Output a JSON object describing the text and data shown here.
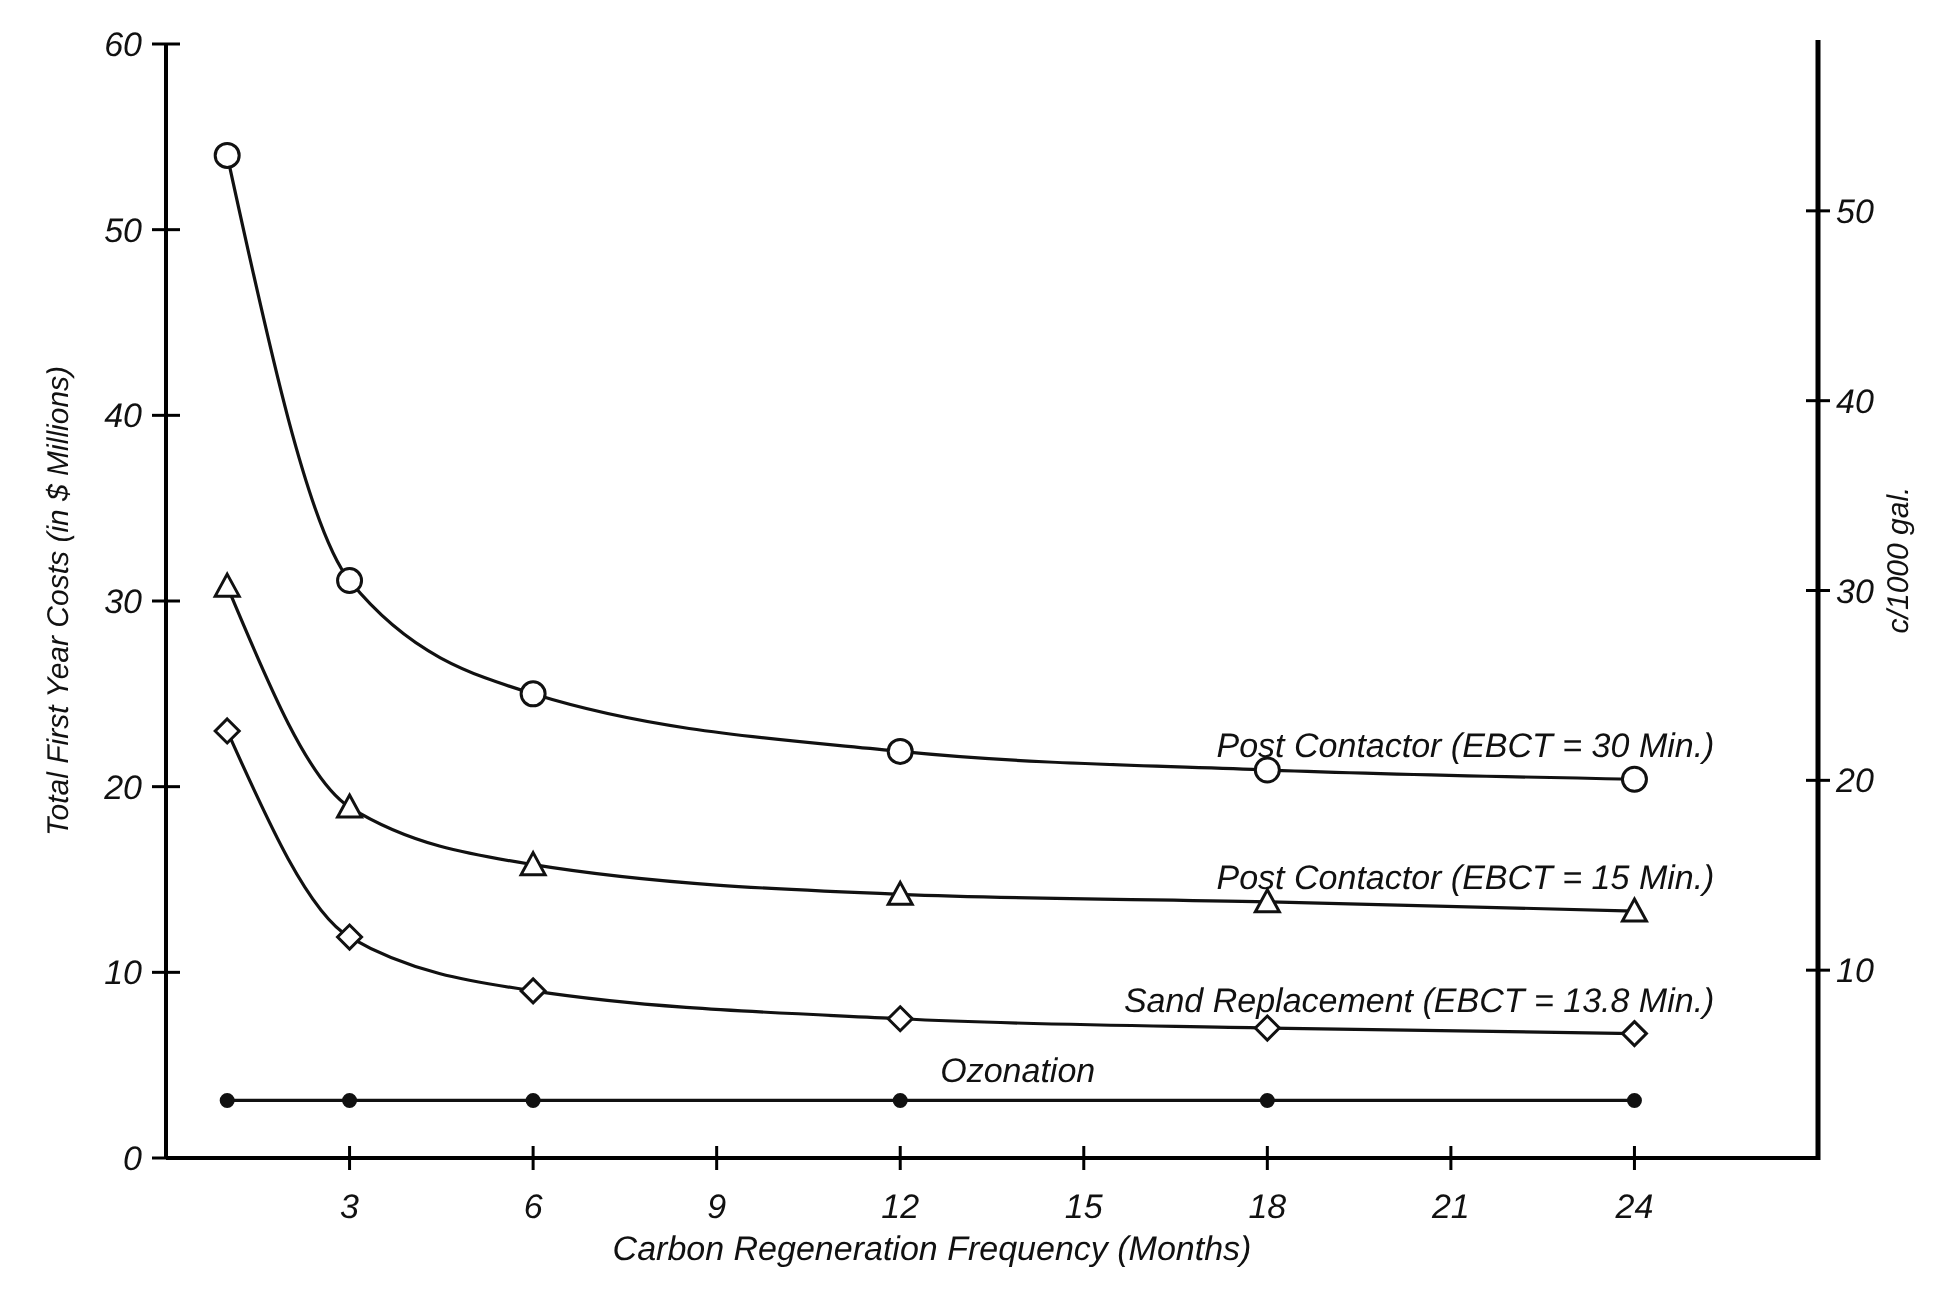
{
  "chart_data": {
    "type": "line",
    "xlabel": "Carbon Regeneration Frequency (Months)",
    "ylabel": "Total First Year Costs (in $ Millions)",
    "y2label": "c/1000 gal.",
    "xlim": [
      0,
      27
    ],
    "xticks": [
      3,
      6,
      9,
      12,
      15,
      18,
      21,
      24
    ],
    "ylim": [
      0,
      60
    ],
    "yticks": [
      0,
      10,
      20,
      30,
      40,
      50,
      60
    ],
    "y2lim": [
      0,
      59
    ],
    "y2ticks": [
      10,
      20,
      30,
      40,
      50
    ],
    "grid": false,
    "legend": false,
    "line_style": "solid",
    "series": [
      {
        "name": "Post Contactor (EBCT = 30 Min.)",
        "color": "#111111",
        "marker": "circle",
        "x": [
          1,
          3,
          6,
          12,
          18,
          24
        ],
        "values": [
          54,
          31.1,
          25,
          21.9,
          20.9,
          20.4
        ]
      },
      {
        "name": "Post Contactor (EBCT = 15 Min.)",
        "color": "#111111",
        "marker": "triangle",
        "x": [
          1,
          3,
          6,
          12,
          18,
          24
        ],
        "values": [
          30.8,
          18.9,
          15.8,
          14.2,
          13.8,
          13.3
        ]
      },
      {
        "name": "Sand Replacement (EBCT = 13.8 Min.)",
        "color": "#111111",
        "marker": "diamond",
        "x": [
          1,
          3,
          6,
          12,
          18,
          24
        ],
        "values": [
          23,
          11.9,
          9,
          7.5,
          7,
          6.7
        ]
      },
      {
        "name": "Ozonation",
        "color": "#111111",
        "marker": "circle",
        "x": [
          1,
          3,
          6,
          12,
          18,
          24
        ],
        "values": [
          3.1,
          3.1,
          3.1,
          3.1,
          3.1,
          3.1
        ]
      }
    ]
  }
}
